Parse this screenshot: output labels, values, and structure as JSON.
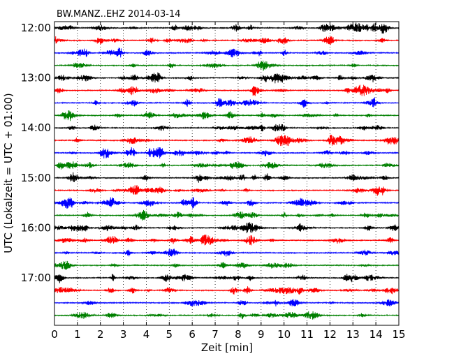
{
  "chart_data": {
    "type": "line",
    "title": "BW.MANZ..EHZ 2014-03-14",
    "xlabel": "Zeit  [min]",
    "ylabel": "UTC (Lokalzeit = UTC + 01:00)",
    "xlim": [
      0,
      15
    ],
    "x_ticks": [
      "0",
      "1",
      "2",
      "3",
      "4",
      "5",
      "6",
      "7",
      "8",
      "9",
      "10",
      "11",
      "12",
      "13",
      "14",
      "15"
    ],
    "y_ticks": [
      "12:00",
      "13:00",
      "14:00",
      "15:00",
      "16:00",
      "17:00"
    ],
    "grid": "vertical dotted",
    "line_minutes": 15,
    "colors": [
      "#000000",
      "#ff0000",
      "#0000ff",
      "#008000"
    ],
    "row_count": 24
  }
}
